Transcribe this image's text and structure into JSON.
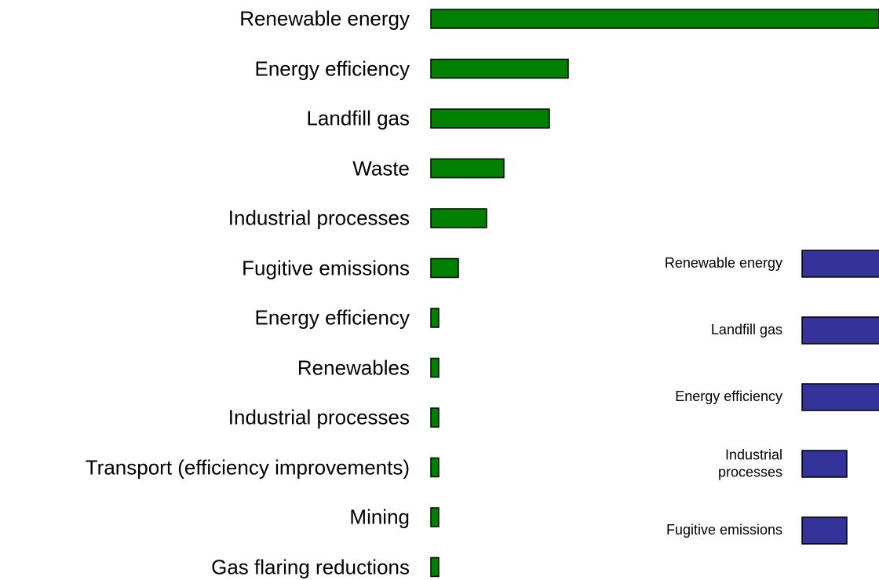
{
  "chart_data": [
    {
      "type": "barh",
      "color": "#008000",
      "xlim": [
        0,
        571
      ],
      "categories": [
        "Renewable energy",
        "Energy efficiency",
        "Landfill gas",
        "Waste",
        "Industrial processes",
        "Fugitive emissions",
        "Energy efficiency",
        "Renewables",
        "Industrial processes",
        "Transport (efficiency improvements)",
        "Mining",
        "Gas flaring reductions"
      ],
      "values": [
        571,
        175,
        151,
        93,
        71,
        35,
        10,
        10,
        10,
        10,
        10,
        10
      ]
    },
    {
      "type": "barh",
      "color": "#333399",
      "xlim": [
        0,
        571
      ],
      "categories": [
        "Renewable energy",
        "Landfill gas",
        "Energy efficiency",
        "Industrial\nprocesses",
        "Fugitive emissions"
      ],
      "values": [
        250,
        200,
        150,
        57,
        57
      ]
    }
  ]
}
